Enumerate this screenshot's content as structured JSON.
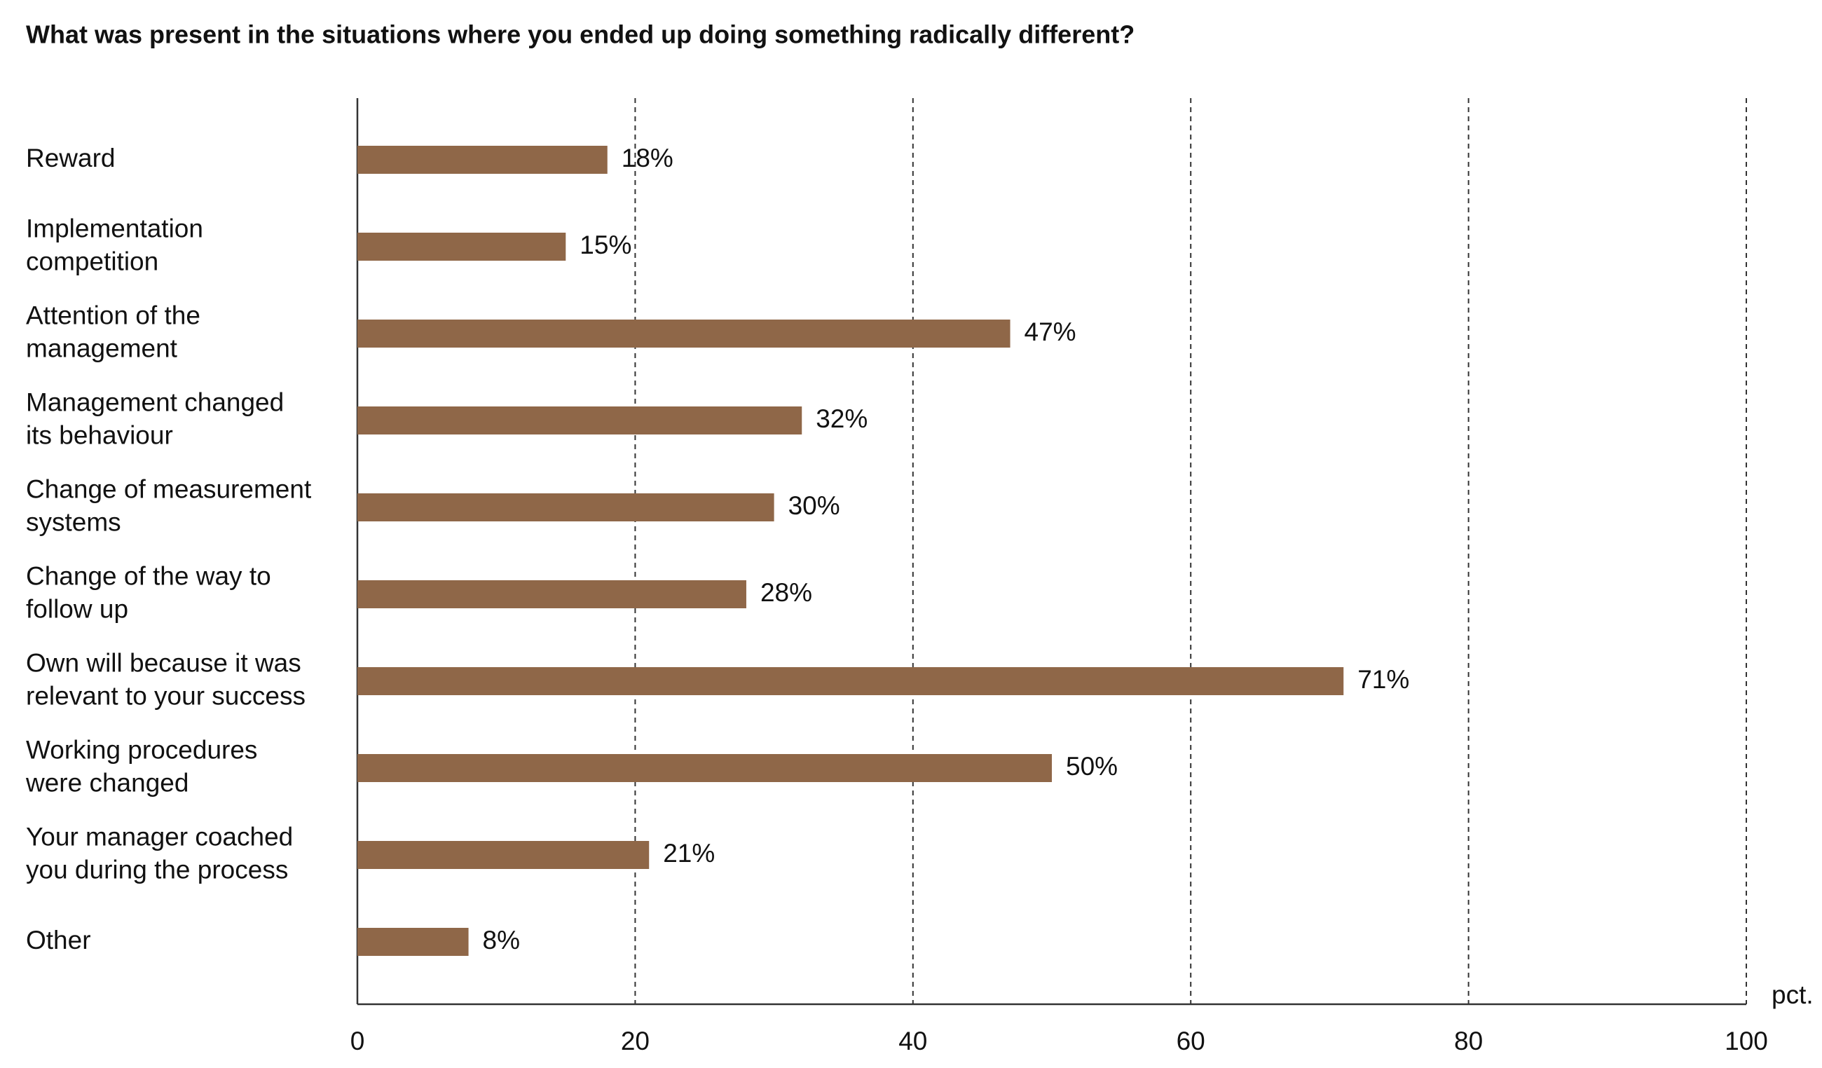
{
  "chart_data": {
    "type": "barh",
    "title": "What was present in the situations where you ended up doing something radically different?",
    "x_label": "pct.",
    "categories": [
      "Reward",
      "Implementation\ncompetition",
      "Attention of the\nmanagement",
      "Management changed\nits behaviour",
      "Change of measurement\nsystems",
      "Change of the way to\nfollow up",
      "Own will because it was\nrelevant to your success",
      "Working procedures\nwere changed",
      "Your manager coached\nyou during the process",
      "Other"
    ],
    "values": [
      18,
      15,
      47,
      32,
      30,
      28,
      71,
      50,
      21,
      8
    ],
    "value_labels": [
      "18%",
      "15%",
      "47%",
      "32%",
      "30%",
      "28%",
      "71%",
      "50%",
      "21%",
      "8%"
    ],
    "color": "#8f6748",
    "xlim": [
      0,
      100
    ],
    "xticks": [
      0,
      20,
      40,
      60,
      80,
      100
    ],
    "grid": true
  }
}
